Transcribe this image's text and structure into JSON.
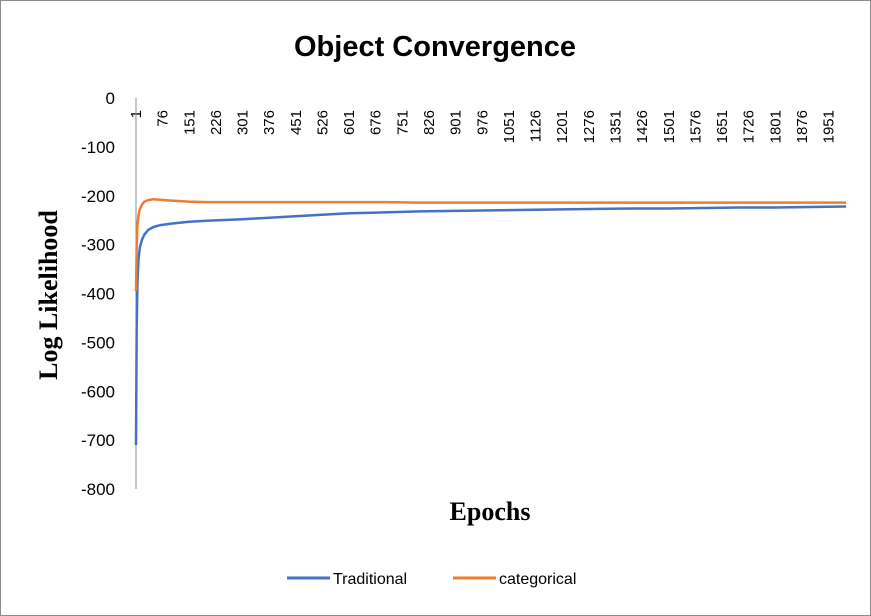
{
  "chart_data": {
    "type": "line",
    "title": "Object Convergence",
    "xlabel": "Epochs",
    "ylabel": "Log Likelihood",
    "ylim": [
      -800,
      0
    ],
    "yticks": [
      0,
      -100,
      -200,
      -300,
      -400,
      -500,
      -600,
      -700,
      -800
    ],
    "xlim": [
      1,
      2000
    ],
    "xtick_labels": [
      "1",
      "76",
      "151",
      "226",
      "301",
      "376",
      "451",
      "526",
      "601",
      "676",
      "751",
      "826",
      "901",
      "976",
      "1051",
      "1126",
      "1201",
      "1276",
      "1351",
      "1426",
      "1501",
      "1576",
      "1651",
      "1726",
      "1801",
      "1876",
      "1951"
    ],
    "grid": false,
    "legend_position": "bottom",
    "series": [
      {
        "name": "Traditional",
        "color": "#4472C4",
        "x": [
          1,
          3,
          5,
          8,
          12,
          18,
          25,
          35,
          50,
          70,
          100,
          150,
          200,
          300,
          400,
          500,
          600,
          700,
          800,
          900,
          1000,
          1100,
          1200,
          1300,
          1400,
          1500,
          1600,
          1700,
          1800,
          1900,
          2000
        ],
        "y": [
          -710,
          -470,
          -380,
          -330,
          -305,
          -290,
          -279,
          -270,
          -264,
          -260,
          -257,
          -253,
          -251,
          -248,
          -244,
          -240,
          -236,
          -234,
          -232,
          -231,
          -230,
          -229,
          -228,
          -227,
          -226,
          -226,
          -225,
          -224,
          -224,
          -223,
          -222
        ]
      },
      {
        "name": "categorical",
        "color": "#ED7D31",
        "x": [
          1,
          3,
          5,
          8,
          12,
          18,
          25,
          35,
          50,
          70,
          100,
          150,
          200,
          300,
          400,
          500,
          600,
          700,
          800,
          900,
          1000,
          1100,
          1200,
          1300,
          1400,
          1500,
          1600,
          1700,
          1800,
          1900,
          2000
        ],
        "y": [
          -395,
          -300,
          -262,
          -240,
          -227,
          -218,
          -212,
          -209,
          -207,
          -208,
          -210,
          -212,
          -213,
          -213,
          -213,
          -213,
          -213,
          -213,
          -214,
          -214,
          -214,
          -214,
          -214,
          -214,
          -214,
          -214,
          -214,
          -214,
          -214,
          -214,
          -214
        ]
      }
    ]
  }
}
